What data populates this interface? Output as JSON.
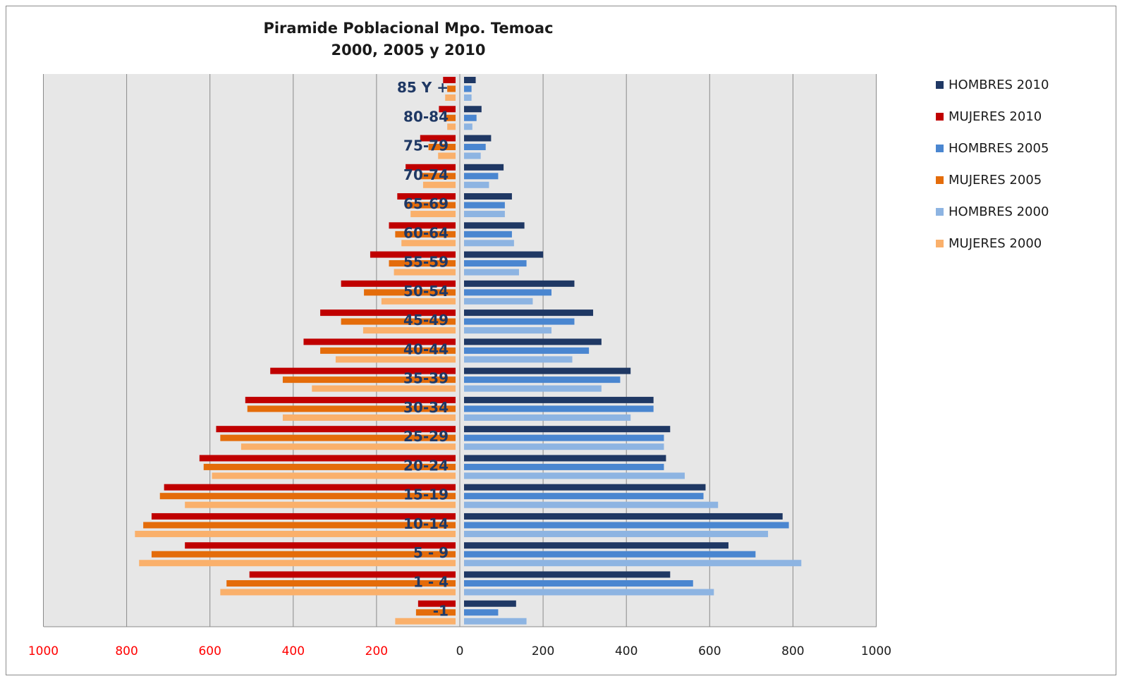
{
  "chart_data": {
    "type": "bar",
    "title": "Piramide Poblacional Mpo. Temoac",
    "subtitle": "2000, 2005 y 2010",
    "categories": [
      "85 Y +",
      "80-84",
      "75-79",
      "70-74",
      "65-69",
      "60-64",
      "55-59",
      "50-54",
      "45-49",
      "40-44",
      "35-39",
      "30-34",
      "25-29",
      "20-24",
      "15-19",
      "10-14",
      "5 - 9",
      "1 - 4",
      "-1"
    ],
    "x_ticks_left": [
      "1000",
      "800",
      "600",
      "400",
      "200"
    ],
    "x_ticks_right": [
      "0",
      "200",
      "400",
      "600",
      "800",
      "1000"
    ],
    "xlim": [
      -1000,
      1000
    ],
    "grid": true,
    "legend_position": "right",
    "tick_colors": {
      "left": "#ff0000",
      "right": "#1a1a1a"
    },
    "series": [
      {
        "name": "HOMBRES 2010",
        "side": "right",
        "color": "#1f3864",
        "values": [
          28,
          42,
          65,
          95,
          115,
          145,
          190,
          265,
          310,
          330,
          400,
          455,
          495,
          485,
          580,
          765,
          635,
          495,
          125
        ]
      },
      {
        "name": "MUJERES 2010",
        "side": "left",
        "color": "#c00000",
        "values": [
          30,
          40,
          85,
          120,
          140,
          160,
          205,
          275,
          325,
          365,
          445,
          505,
          575,
          615,
          700,
          730,
          650,
          495,
          90
        ]
      },
      {
        "name": "HOMBRES 2005",
        "side": "right",
        "color": "#4a86d0",
        "values": [
          18,
          30,
          52,
          82,
          98,
          115,
          150,
          210,
          265,
          300,
          375,
          455,
          480,
          480,
          575,
          780,
          700,
          550,
          82
        ]
      },
      {
        "name": "MUJERES 2005",
        "side": "left",
        "color": "#e46c0a",
        "values": [
          20,
          25,
          65,
          85,
          120,
          145,
          160,
          220,
          275,
          325,
          415,
          500,
          565,
          605,
          710,
          750,
          730,
          550,
          95
        ]
      },
      {
        "name": "HOMBRES 2000",
        "side": "right",
        "color": "#8db4e2",
        "values": [
          18,
          20,
          40,
          60,
          98,
          120,
          132,
          165,
          210,
          260,
          330,
          400,
          480,
          530,
          610,
          730,
          810,
          600,
          150
        ]
      },
      {
        "name": "MUJERES 2000",
        "side": "left",
        "color": "#fab06b",
        "values": [
          25,
          20,
          42,
          78,
          108,
          130,
          148,
          178,
          222,
          288,
          345,
          415,
          515,
          585,
          650,
          770,
          760,
          565,
          145
        ]
      }
    ]
  }
}
